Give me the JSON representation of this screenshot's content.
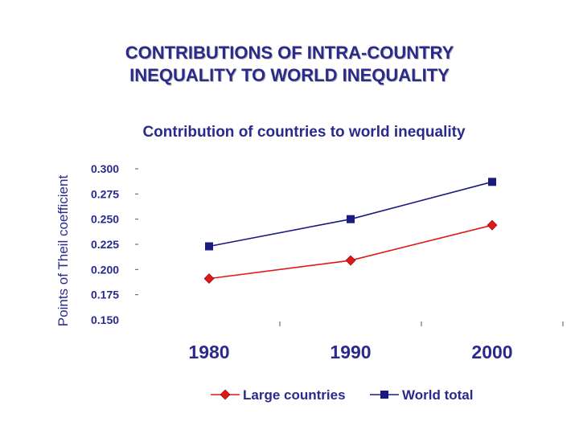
{
  "slide": {
    "title_line1": "CONTRIBUTIONS OF INTRA-COUNTRY",
    "title_line2": "INEQUALITY TO WORLD INEQUALITY"
  },
  "chart_data": {
    "type": "line",
    "title": "Contribution of countries to world inequality",
    "xlabel": "",
    "ylabel": "Points of Theil coefficient",
    "categories": [
      "1980",
      "1990",
      "2000"
    ],
    "y_ticks": [
      "0.300",
      "0.275",
      "0.250",
      "0.225",
      "0.200",
      "0.175",
      "0.150"
    ],
    "ylim": [
      0.15,
      0.3
    ],
    "grid": false,
    "legend_position": "bottom",
    "series": [
      {
        "name": "Large countries",
        "values": [
          0.191,
          0.209,
          0.244
        ],
        "color": "#e01818",
        "marker": "diamond"
      },
      {
        "name": "World total",
        "values": [
          0.223,
          0.25,
          0.287
        ],
        "color": "#1a1a80",
        "marker": "square"
      }
    ]
  }
}
